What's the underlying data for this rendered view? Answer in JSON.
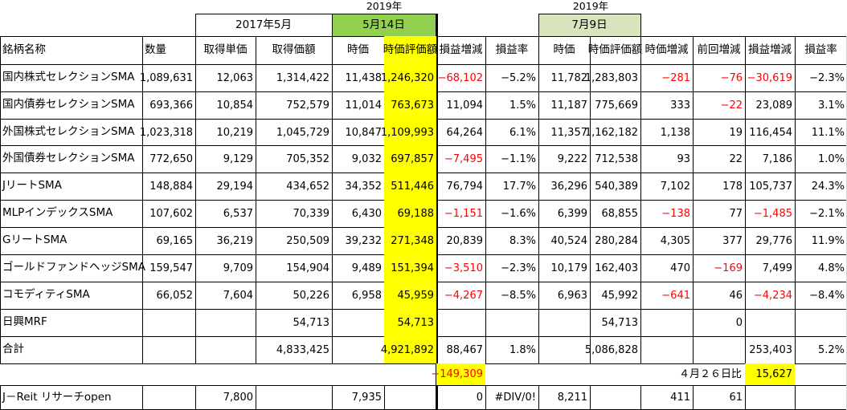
{
  "top": {
    "year_a": "2019年",
    "year_b": "2019年",
    "period_2017": "2017年5月",
    "date_may": "5月14日",
    "date_jul": "7月9日"
  },
  "columns": [
    "銘柄名称",
    "数量",
    "取得単価",
    "取得価額",
    "時価",
    "時価評価額",
    "損益増減",
    "損益率",
    "時価",
    "時価評価額",
    "時価増減",
    "前回増減",
    "損益増減",
    "損益率"
  ],
  "rows": [
    {
      "cells": [
        "国内株式セレクションSMA",
        "1,089,631",
        "12,063",
        "1,314,422",
        "11,438",
        "1,246,320",
        "−68,102",
        "−5.2%",
        "11,782",
        "1,283,803",
        "−281",
        "−76",
        "−30,619",
        "−2.3%"
      ],
      "neg": [
        6,
        10,
        11,
        12
      ]
    },
    {
      "cells": [
        "国内債券セレクションSMA",
        "693,366",
        "10,854",
        "752,579",
        "11,014",
        "763,673",
        "11,094",
        "1.5%",
        "11,187",
        "775,669",
        "333",
        "−22",
        "23,089",
        "3.1%"
      ],
      "neg": [
        11
      ]
    },
    {
      "cells": [
        "外国株式セレクションSMA",
        "1,023,318",
        "10,219",
        "1,045,729",
        "10,847",
        "1,109,993",
        "64,264",
        "6.1%",
        "11,357",
        "1,162,182",
        "1,138",
        "19",
        "116,454",
        "11.1%"
      ],
      "neg": []
    },
    {
      "cells": [
        "外国債券セレクションSMA",
        "772,650",
        "9,129",
        "705,352",
        "9,032",
        "697,857",
        "−7,495",
        "−1.1%",
        "9,222",
        "712,538",
        "93",
        "22",
        "7,186",
        "1.0%"
      ],
      "neg": [
        6
      ]
    },
    {
      "cells": [
        "JリートSMA",
        "148,884",
        "29,194",
        "434,652",
        "34,352",
        "511,446",
        "76,794",
        "17.7%",
        "36,296",
        "540,389",
        "7,102",
        "178",
        "105,737",
        "24.3%"
      ],
      "neg": []
    },
    {
      "cells": [
        "MLPインデックスSMA",
        "107,602",
        "6,537",
        "70,339",
        "6,430",
        "69,188",
        "−1,151",
        "−1.6%",
        "6,399",
        "68,855",
        "−138",
        "77",
        "−1,485",
        "−2.1%"
      ],
      "neg": [
        6,
        10,
        12
      ]
    },
    {
      "cells": [
        "GリートSMA",
        "69,165",
        "36,219",
        "250,509",
        "39,232",
        "271,348",
        "20,839",
        "8.3%",
        "40,524",
        "280,284",
        "4,305",
        "377",
        "29,776",
        "11.9%"
      ],
      "neg": []
    },
    {
      "cells": [
        "ゴールドファンドヘッジSMA",
        "159,547",
        "9,709",
        "154,904",
        "9,489",
        "151,394",
        "−3,510",
        "−2.3%",
        "10,179",
        "162,403",
        "470",
        "−169",
        "7,499",
        "4.8%"
      ],
      "neg": [
        6,
        11
      ]
    },
    {
      "cells": [
        "コモディティSMA",
        "66,052",
        "7,604",
        "50,226",
        "6,958",
        "45,959",
        "−4,267",
        "−8.5%",
        "6,963",
        "45,992",
        "−641",
        "46",
        "−4,234",
        "−8.4%"
      ],
      "neg": [
        6,
        10,
        12
      ]
    },
    {
      "cells": [
        "日興MRF",
        "",
        "",
        "54,713",
        "",
        "54,713",
        "",
        "",
        "",
        "54,713",
        "",
        "0",
        "",
        ""
      ],
      "neg": []
    },
    {
      "cells": [
        "合計",
        "",
        "",
        "4,833,425",
        "",
        "4,921,892",
        "88,467",
        "1.8%",
        "",
        "5,086,828",
        "",
        "",
        "253,403",
        "5.2%"
      ],
      "neg": []
    }
  ],
  "summary": {
    "may_diff": "−149,309",
    "apr_label": "４月２６日比",
    "apr_diff": "15,627"
  },
  "extra": {
    "cells": [
      "J－Reit リサーチopen",
      "",
      "7,800",
      "",
      "7,935",
      "",
      "0",
      "#DIV/0!",
      "8,211",
      "",
      "411",
      "61",
      "",
      ""
    ]
  }
}
